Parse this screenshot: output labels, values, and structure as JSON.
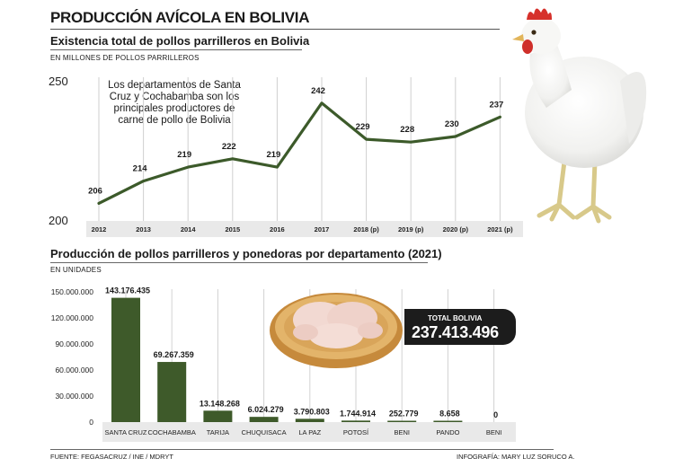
{
  "header": {
    "main_title": "PRODUCCIÓN AVÍCOLA EN BOLIVIA"
  },
  "line_section": {
    "title": "Existencia total de pollos parrilleros en Bolivia",
    "unit": "EN MILLONES DE POLLOS PARRILLEROS",
    "note": "Los departamentos de Santa Cruz y Cochabamba son los principales productores de carne de pollo de Bolivia"
  },
  "bar_section": {
    "title": "Producción de pollos parrilleros y ponedoras por departamento (2021)",
    "unit": "EN UNIDADES"
  },
  "total": {
    "label": "TOTAL BOLIVIA",
    "value": "237.413.496"
  },
  "footer": {
    "source": "FUENTE: FEGASACRUZ / INE / MDRYT",
    "credit": "INFOGRAFÍA: MARY LUZ SORUCO A."
  },
  "colors": {
    "accent": "#3c5a2a",
    "bar": "#3e5a2a"
  },
  "chart_data": [
    {
      "type": "line",
      "title": "Existencia total de pollos parrilleros en Bolivia",
      "ylabel": "EN MILLONES DE POLLOS PARRILLEROS",
      "x": [
        "2012",
        "2013",
        "2014",
        "2015",
        "2016",
        "2017",
        "2018 (p)",
        "2019 (p)",
        "2020 (p)",
        "2021 (p)"
      ],
      "values": [
        206,
        214,
        219,
        222,
        219,
        242,
        229,
        228,
        230,
        237
      ],
      "ylim": [
        200,
        250
      ],
      "yticks": [
        "250",
        "200"
      ],
      "data_labels": true,
      "grid": "vertical"
    },
    {
      "type": "bar",
      "title": "Producción de pollos parrilleros y ponedoras por departamento (2021)",
      "ylabel": "EN UNIDADES",
      "categories": [
        "SANTA CRUZ",
        "COCHABAMBA",
        "TARIJA",
        "CHUQUISACA",
        "LA PAZ",
        "POTOSÍ",
        "BENI",
        "PANDO",
        "BENI"
      ],
      "values": [
        143176435,
        69267359,
        13148268,
        6024279,
        3790803,
        1744914,
        252779,
        8658,
        0
      ],
      "value_labels": [
        "143.176.435",
        "69.267.359",
        "13.148.268",
        "6.024.279",
        "3.790.803",
        "1.744.914",
        "252.779",
        "8.658",
        "0"
      ],
      "ylim": [
        0,
        150000000
      ],
      "yticks": [
        "150.000.000",
        "120.000.000",
        "90.000.000",
        "60.000.000",
        "30.000.000",
        "0"
      ]
    }
  ]
}
